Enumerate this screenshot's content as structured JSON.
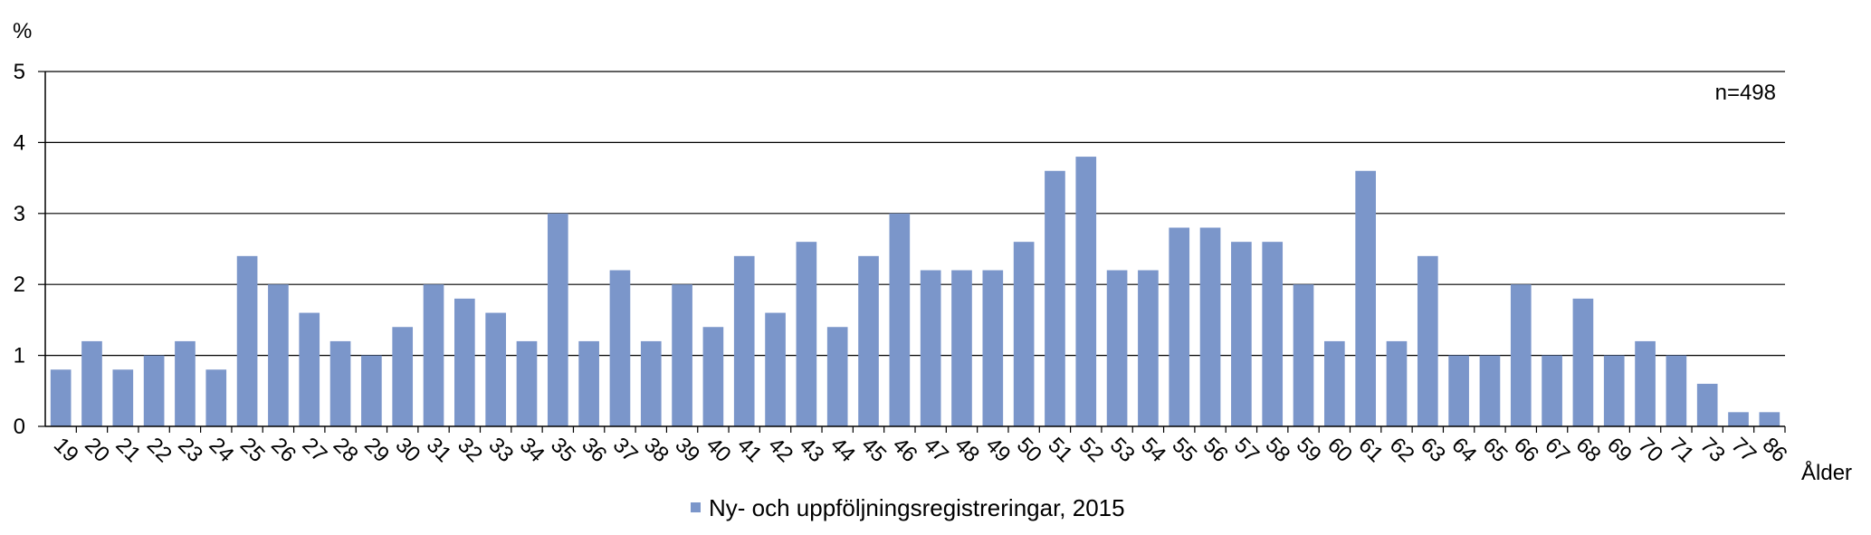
{
  "chart_data": {
    "type": "bar",
    "ylabel": "%",
    "xlabel": "Ålder",
    "annotation": "n=498",
    "ylim": [
      0,
      5
    ],
    "yticks": [
      0,
      1,
      2,
      3,
      4,
      5
    ],
    "grid": true,
    "legend_position": "bottom-center",
    "bar_color": "#7b96ca",
    "categories": [
      "19",
      "20",
      "21",
      "22",
      "23",
      "24",
      "25",
      "26",
      "27",
      "28",
      "29",
      "30",
      "31",
      "32",
      "33",
      "34",
      "35",
      "36",
      "37",
      "38",
      "39",
      "40",
      "41",
      "42",
      "43",
      "44",
      "45",
      "46",
      "47",
      "48",
      "49",
      "50",
      "51",
      "52",
      "53",
      "54",
      "55",
      "56",
      "57",
      "58",
      "59",
      "60",
      "61",
      "62",
      "63",
      "64",
      "65",
      "66",
      "67",
      "68",
      "69",
      "70",
      "71",
      "73",
      "77",
      "86"
    ],
    "series": [
      {
        "name": "Ny- och uppföljningsregistreringar, 2015",
        "values": [
          0.8,
          1.2,
          0.8,
          1.0,
          1.2,
          0.8,
          2.4,
          2.0,
          1.6,
          1.2,
          1.0,
          1.4,
          2.0,
          1.8,
          1.6,
          1.2,
          3.0,
          1.2,
          2.2,
          1.2,
          2.0,
          1.4,
          2.4,
          1.6,
          2.6,
          1.4,
          2.4,
          3.0,
          2.2,
          2.2,
          2.2,
          2.6,
          3.6,
          3.8,
          2.2,
          2.2,
          2.8,
          2.8,
          2.6,
          2.6,
          2.0,
          1.2,
          3.6,
          1.2,
          2.4,
          1.0,
          1.0,
          2.0,
          1.0,
          1.8,
          1.0,
          1.2,
          1.0,
          0.6,
          0.2,
          0.2
        ]
      }
    ]
  }
}
